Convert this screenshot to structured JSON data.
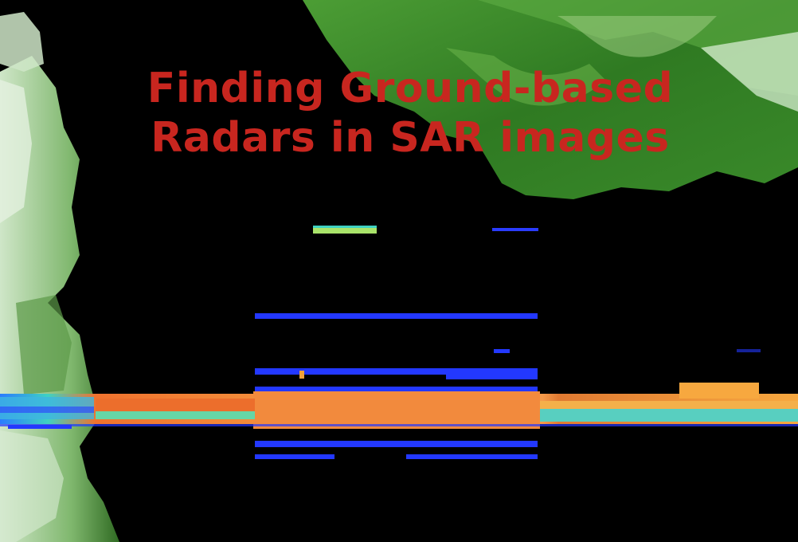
{
  "title": {
    "line1": "Finding Ground-based",
    "line2": "Radars in SAR images"
  },
  "colors": {
    "title": "#c8261f",
    "terrain": "#3f8f2a",
    "coast": "#d6e8d0",
    "rfi_hot": "#f07a33",
    "rfi_cool": "#2a3cff",
    "rfi_mid": "#3fc7c0"
  }
}
